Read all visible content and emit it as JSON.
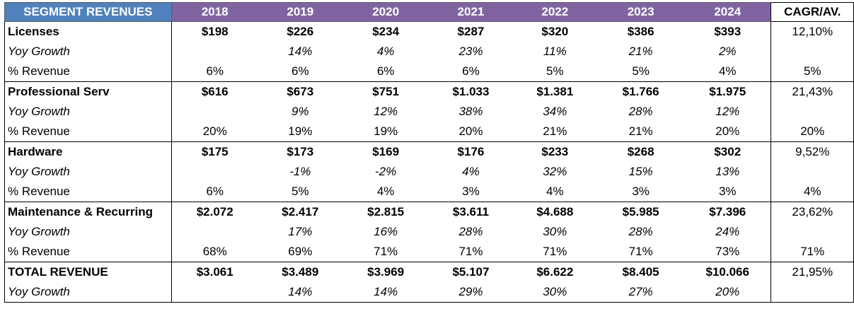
{
  "header": {
    "label": "SEGMENT REVENUES",
    "years": [
      "2018",
      "2019",
      "2020",
      "2021",
      "2022",
      "2023",
      "2024"
    ],
    "cagr": "CAGR/AV."
  },
  "segments": [
    {
      "name": "Licenses",
      "values": [
        "$198",
        "$226",
        "$234",
        "$287",
        "$320",
        "$386",
        "$393"
      ],
      "cagr": "12,10%",
      "growth_label": "Yoy Growth",
      "growth": [
        "",
        "14%",
        "4%",
        "23%",
        "11%",
        "21%",
        "2%"
      ],
      "share_label": "% Revenue",
      "share": [
        "6%",
        "6%",
        "6%",
        "6%",
        "5%",
        "5%",
        "4%"
      ],
      "share_avg": "5%"
    },
    {
      "name": "Professional Serv",
      "values": [
        "$616",
        "$673",
        "$751",
        "$1.033",
        "$1.381",
        "$1.766",
        "$1.975"
      ],
      "cagr": "21,43%",
      "growth_label": "Yoy Growth",
      "growth": [
        "",
        "9%",
        "12%",
        "38%",
        "34%",
        "28%",
        "12%"
      ],
      "share_label": "% Revenue",
      "share": [
        "20%",
        "19%",
        "19%",
        "20%",
        "21%",
        "21%",
        "20%"
      ],
      "share_avg": "20%"
    },
    {
      "name": "Hardware",
      "values": [
        "$175",
        "$173",
        "$169",
        "$176",
        "$233",
        "$268",
        "$302"
      ],
      "cagr": "9,52%",
      "growth_label": "Yoy Growth",
      "growth": [
        "",
        "-1%",
        "-2%",
        "4%",
        "32%",
        "15%",
        "13%"
      ],
      "share_label": "% Revenue",
      "share": [
        "6%",
        "5%",
        "4%",
        "3%",
        "4%",
        "3%",
        "3%"
      ],
      "share_avg": "4%"
    },
    {
      "name": "Maintenance & Recurring",
      "values": [
        "$2.072",
        "$2.417",
        "$2.815",
        "$3.611",
        "$4.688",
        "$5.985",
        "$7.396"
      ],
      "cagr": "23,62%",
      "growth_label": "Yoy Growth",
      "growth": [
        "",
        "17%",
        "16%",
        "28%",
        "30%",
        "28%",
        "24%"
      ],
      "share_label": "% Revenue",
      "share": [
        "68%",
        "69%",
        "71%",
        "71%",
        "71%",
        "71%",
        "73%"
      ],
      "share_avg": "71%"
    }
  ],
  "total": {
    "name": "TOTAL REVENUE",
    "values": [
      "$3.061",
      "$3.489",
      "$3.969",
      "$5.107",
      "$6.622",
      "$8.405",
      "$10.066"
    ],
    "cagr": "21,95%",
    "growth_label": "Yoy Growth",
    "growth": [
      "",
      "14%",
      "14%",
      "29%",
      "30%",
      "27%",
      "20%"
    ]
  }
}
